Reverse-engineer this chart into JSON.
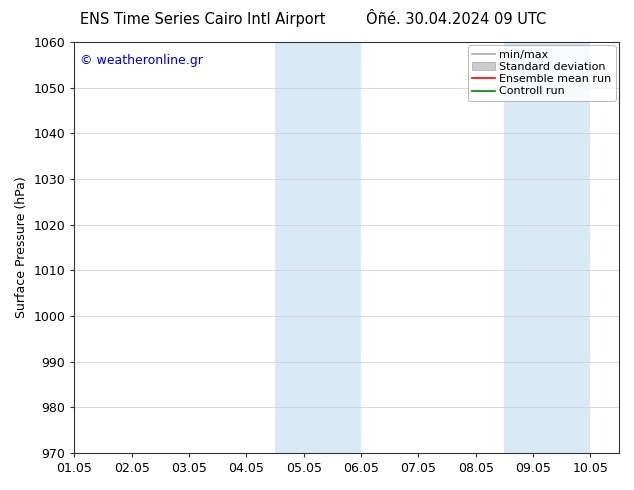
{
  "title_left": "ENS Time Series Cairo Intl Airport",
  "title_right": "Ôñé. 30.04.2024 09 UTC",
  "ylabel": "Surface Pressure (hPa)",
  "ylim": [
    970,
    1060
  ],
  "yticks": [
    970,
    980,
    990,
    1000,
    1010,
    1020,
    1030,
    1040,
    1050,
    1060
  ],
  "xlim": [
    0.0,
    9.5
  ],
  "xtick_labels": [
    "01.05",
    "02.05",
    "03.05",
    "04.05",
    "05.05",
    "06.05",
    "07.05",
    "08.05",
    "09.05",
    "10.05"
  ],
  "xtick_positions": [
    0,
    1,
    2,
    3,
    4,
    5,
    6,
    7,
    8,
    9
  ],
  "shaded_bands": [
    {
      "x_start": 3.5,
      "x_end": 5.0,
      "color": "#d9eaf7"
    },
    {
      "x_start": 7.5,
      "x_end": 9.0,
      "color": "#d9eaf7"
    }
  ],
  "watermark_text": "© weatheronline.gr",
  "watermark_color": "#0000cc",
  "bg_color": "#ffffff",
  "grid_color": "#cccccc",
  "spine_color": "#333333",
  "font_size": 9,
  "ylabel_fontsize": 9,
  "title_fontsize": 10.5,
  "legend_fontsize": 8,
  "tick_fontsize": 9
}
